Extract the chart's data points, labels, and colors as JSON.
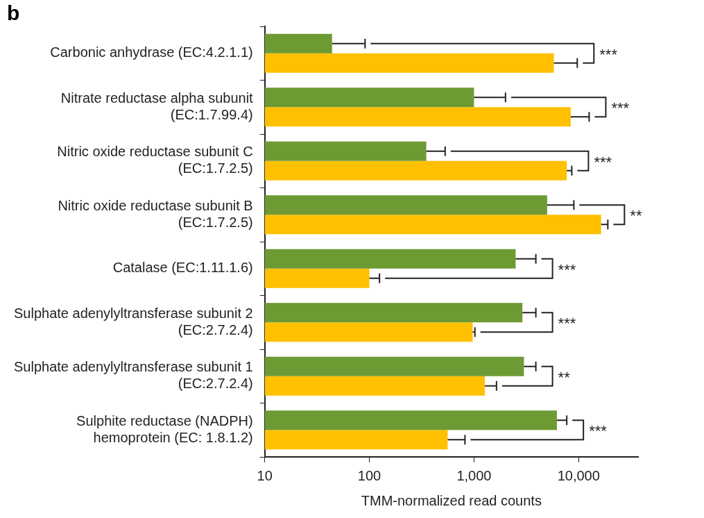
{
  "chart_data": {
    "type": "bar",
    "orientation": "horizontal",
    "log": "x",
    "title": "b",
    "xlabel": "TMM-normalized read counts",
    "categories": [
      "Carbonic anhydrase (EC:4.2.1.1)",
      "Nitrate reductase alpha subunit (EC:1.7.99.4)",
      "Nitric oxide reductase subunit C (EC:1.7.2.5)",
      "Nitric oxide reductase subunit B (EC:1.7.2.5)",
      "Catalase (EC:1.11.1.6)",
      "Sulphate adenylyltransferase subunit 2 (EC:2.7.2.4)",
      "Sulphate adenylyltransferase subunit 1 (EC:2.7.2.4)",
      "Sulphite reductase (NADPH) hemoprotein (EC: 1.8.1.2)"
    ],
    "series": [
      {
        "color": "#6e9a34",
        "values": [
          44,
          1000,
          350,
          5000,
          2500,
          2900,
          3000,
          6200
        ],
        "errors": [
          [
            44,
            91
          ],
          [
            1000,
            2000
          ],
          [
            350,
            530
          ],
          [
            5000,
            9000
          ],
          [
            2500,
            3900
          ],
          [
            2900,
            3900
          ],
          [
            3000,
            3900
          ],
          [
            6200,
            7700
          ]
        ]
      },
      {
        "color": "#ffc000",
        "values": [
          5800,
          8400,
          7700,
          16400,
          100,
          970,
          1270,
          560
        ],
        "errors": [
          [
            5800,
            9700
          ],
          [
            8400,
            12600
          ],
          [
            7700,
            8600
          ],
          [
            16400,
            19000
          ],
          [
            100,
            125
          ],
          [
            970,
            1020
          ],
          [
            1270,
            1640
          ],
          [
            560,
            820
          ]
        ]
      }
    ],
    "annotations": [
      "***",
      "***",
      "***",
      "**",
      "***",
      "***",
      "**",
      "***"
    ],
    "xlim": [
      10,
      37000
    ],
    "xticks": [
      10,
      100,
      {
        "value": 1000,
        "label": "1,000"
      },
      {
        "value": 10000,
        "label": "10,000"
      }
    ],
    "grid": false,
    "legend": false
  }
}
